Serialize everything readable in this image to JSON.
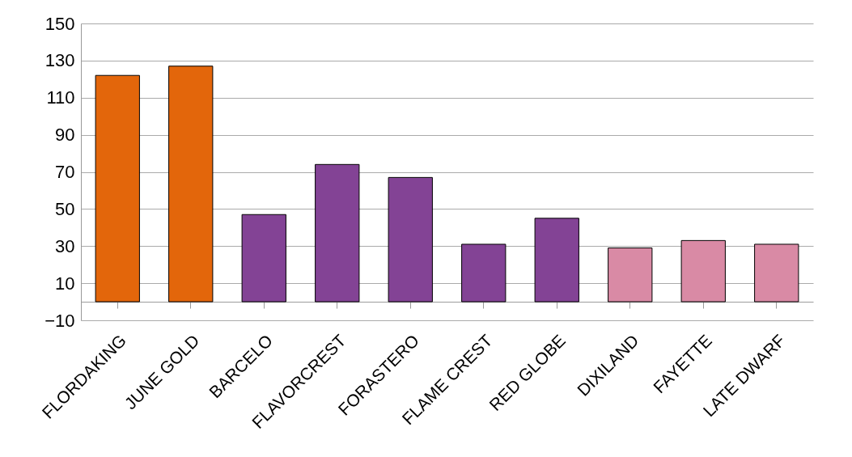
{
  "chart_data": {
    "type": "bar",
    "categories": [
      "FLORDAKING",
      "JUNE GOLD",
      "BARCELO",
      "FLAVORCREST",
      "FORASTERO",
      "FLAME CREST",
      "RED GLOBE",
      "DIXILAND",
      "FAYETTE",
      "LATE DWARF"
    ],
    "values": [
      122,
      127,
      47,
      74,
      67,
      31,
      45,
      29,
      33,
      31
    ],
    "colors": [
      "#e3660b",
      "#e3660b",
      "#834395",
      "#834395",
      "#834395",
      "#834395",
      "#834395",
      "#d98aa5",
      "#d98aa5",
      "#d98aa5"
    ],
    "ylim": [
      -10,
      150
    ],
    "yticks": [
      -10,
      10,
      30,
      50,
      70,
      90,
      110,
      130,
      150
    ],
    "grid": "y"
  }
}
